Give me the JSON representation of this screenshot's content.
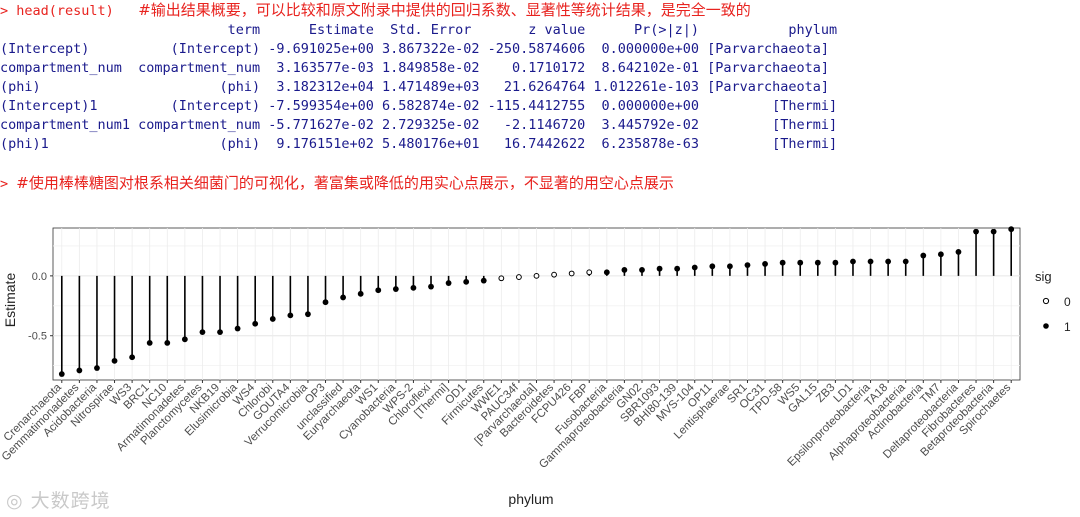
{
  "console": {
    "prompt1": "> head(result)",
    "comment1": "#输出结果概要，可以比较和原文附录中提供的回归系数、显著性等统计结果，是完全一致的",
    "header": "                            term      Estimate  Std. Error       z value      Pr(>|z|)           phylum",
    "rows": [
      "(Intercept)          (Intercept) -9.691025e+00 3.867322e-02 -250.5874606  0.000000e+00 [Parvarchaeota]",
      "compartment_num  compartment_num  3.163577e-03 1.849858e-02    0.1710172  8.642102e-01 [Parvarchaeota]",
      "(phi)                      (phi)  3.182312e+04 1.471489e+03   21.6264764 1.012261e-103 [Parvarchaeota]",
      "(Intercept)1         (Intercept) -7.599354e+00 6.582874e-02 -115.4412755  0.000000e+00         [Thermi]",
      "compartment_num1 compartment_num -5.771627e-02 2.729325e-02   -2.1146720  3.445792e-02         [Thermi]",
      "(phi)1                     (phi)  9.176151e+02 5.480176e+01   16.7442622  6.235878e-63         [Thermi]"
    ],
    "prompt2": ">",
    "comment2": "#使用棒棒糖图对根系相关细菌门的可视化，著富集或降低的用实心点展示，不显著的用空心点展示"
  },
  "chart_data": {
    "type": "scatter",
    "subtype": "lollipop",
    "xlabel": "phylum",
    "ylabel": "Estimate",
    "ylim": [
      -0.87,
      0.4
    ],
    "yticks": [
      "-0.5",
      "0.0"
    ],
    "ytick_values": [
      -0.5,
      0.0
    ],
    "grid": true,
    "legend": {
      "title": "sig",
      "placement": "right",
      "entries": [
        "0",
        "1"
      ]
    },
    "categories": [
      "Crenarchaeota",
      "Gemmatimonadetes",
      "Acidobacteria",
      "Nitrospirae",
      "WS3",
      "BRC1",
      "NC10",
      "Armatimonadetes",
      "Planctomycetes",
      "NKB19",
      "Elusimicrobia",
      "WS4",
      "Chlorobi",
      "GOUTA4",
      "Verrucomicrobia",
      "OP3",
      "unclassified",
      "Euryarchaeota",
      "WS1",
      "Cyanobacteria",
      "WPS-2",
      "Chloroflexi",
      "[Thermi]",
      "OD1",
      "Firmicutes",
      "WWE1",
      "PAUC34f",
      "[Parvarchaeota]",
      "Bacteroidetes",
      "FCPU426",
      "FBP",
      "Fusobacteria",
      "Gammaproteobacteria",
      "GN02",
      "SBR1093",
      "BHI80-139",
      "MVS-104",
      "OP11",
      "Lentisphaerae",
      "SR1",
      "OC31",
      "TPD-58",
      "WS5",
      "GAL15",
      "ZB3",
      "LD1",
      "Epsilonproteobacteria",
      "TA18",
      "Alphaproteobacteria",
      "Actinobacteria",
      "TM7",
      "Deltaproteobacteria",
      "Fibrobacteres",
      "Betaproteobacteria",
      "Spirochaetes"
    ],
    "values": [
      -0.82,
      -0.79,
      -0.77,
      -0.71,
      -0.68,
      -0.56,
      -0.56,
      -0.53,
      -0.47,
      -0.47,
      -0.44,
      -0.4,
      -0.36,
      -0.33,
      -0.32,
      -0.22,
      -0.18,
      -0.15,
      -0.12,
      -0.11,
      -0.1,
      -0.09,
      -0.06,
      -0.05,
      -0.04,
      -0.02,
      -0.01,
      0.0,
      0.01,
      0.02,
      0.03,
      0.03,
      0.05,
      0.05,
      0.06,
      0.06,
      0.07,
      0.08,
      0.08,
      0.09,
      0.1,
      0.11,
      0.11,
      0.11,
      0.11,
      0.12,
      0.12,
      0.12,
      0.12,
      0.17,
      0.18,
      0.2,
      0.37,
      0.37,
      0.39
    ],
    "sig": [
      1,
      1,
      1,
      1,
      1,
      1,
      1,
      1,
      1,
      1,
      1,
      1,
      1,
      1,
      1,
      1,
      1,
      1,
      1,
      1,
      1,
      1,
      1,
      1,
      1,
      0,
      0,
      0,
      0,
      0,
      0,
      1,
      1,
      1,
      1,
      1,
      1,
      1,
      1,
      1,
      1,
      1,
      1,
      1,
      1,
      1,
      1,
      1,
      1,
      1,
      1,
      1,
      1,
      1,
      1
    ]
  },
  "watermark": "大数跨境"
}
